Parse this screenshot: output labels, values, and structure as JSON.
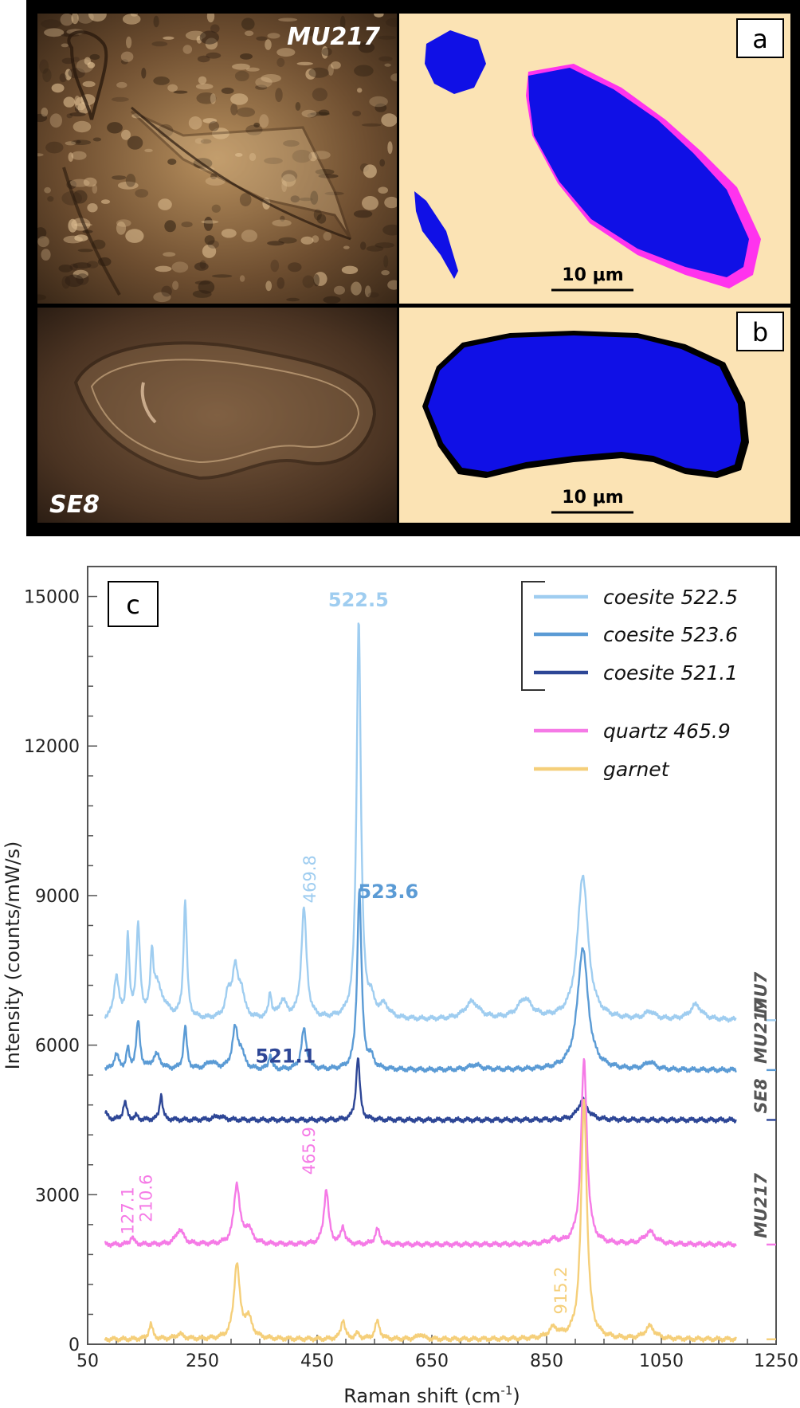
{
  "panel_a": {
    "label": "a",
    "sample": "MU217",
    "scale_bar": "10 μm",
    "colors": {
      "background": "#fbe3b4",
      "coesite": "#1010e6",
      "quartz": "#ff33ee"
    }
  },
  "panel_b": {
    "label": "b",
    "sample": "SE8",
    "scale_bar": "10 μm",
    "colors": {
      "background": "#fbe3b4",
      "coesite": "#1010e6",
      "edge": "#000000"
    }
  },
  "panel_c": {
    "label": "c"
  },
  "chart_data": {
    "type": "line",
    "xlabel": "Raman shift (cm",
    "xlabel_sup": "-1",
    "xlabel_end": ")",
    "ylabel": "Intensity (counts/mW/s)",
    "xlim": [
      50,
      1250
    ],
    "ylim": [
      0,
      15600
    ],
    "x_ticks": [
      50,
      250,
      450,
      650,
      850,
      1050,
      1250
    ],
    "y_ticks": [
      0,
      3000,
      6000,
      9000,
      12000,
      15000
    ],
    "x_range": [
      80,
      1180
    ],
    "legend_position": "top-right",
    "legend": [
      {
        "label": "coesite 522.5",
        "color": "#9fcdf0"
      },
      {
        "label": "coesite 523.6",
        "color": "#5b9bd5"
      },
      {
        "label": "coesite 521.1",
        "color": "#2d4696"
      },
      {
        "label": "quartz 465.9",
        "color": "#f57ae6"
      },
      {
        "label": "garnet",
        "color": "#f5cf7a"
      }
    ],
    "series": [
      {
        "name": "coesite 522.5",
        "sample": "MU7",
        "color": "#9fcdf0",
        "baseline": 6500,
        "peaks": [
          [
            100,
            850,
            5
          ],
          [
            120,
            1600,
            3
          ],
          [
            138,
            1800,
            4
          ],
          [
            162,
            1100,
            3
          ],
          [
            170,
            500,
            8
          ],
          [
            180,
            250,
            15
          ],
          [
            220,
            2350,
            3.5
          ],
          [
            295,
            450,
            6
          ],
          [
            307,
            950,
            6
          ],
          [
            318,
            500,
            6
          ],
          [
            368,
            500,
            3
          ],
          [
            390,
            350,
            8
          ],
          [
            427,
            2200,
            5.5
          ],
          [
            522.5,
            8000,
            4.5
          ],
          [
            544,
            300,
            6
          ],
          [
            567,
            250,
            10
          ],
          [
            720,
            350,
            15
          ],
          [
            812,
            400,
            15
          ],
          [
            913,
            2900,
            11
          ],
          [
            1030,
            150,
            10
          ],
          [
            1110,
            300,
            12
          ]
        ]
      },
      {
        "name": "coesite 523.6",
        "sample": "MU217",
        "color": "#5b9bd5",
        "baseline": 5500,
        "peaks": [
          [
            100,
            300,
            5
          ],
          [
            120,
            400,
            3
          ],
          [
            138,
            950,
            4
          ],
          [
            170,
            300,
            8
          ],
          [
            220,
            850,
            3.5
          ],
          [
            265,
            150,
            10
          ],
          [
            307,
            800,
            6
          ],
          [
            318,
            300,
            6
          ],
          [
            368,
            300,
            3
          ],
          [
            427,
            800,
            5.5
          ],
          [
            523.6,
            3600,
            4.5
          ],
          [
            544,
            200,
            6
          ],
          [
            725,
            100,
            12
          ],
          [
            913,
            2450,
            11
          ],
          [
            1030,
            150,
            10
          ]
        ]
      },
      {
        "name": "coesite 521.1",
        "sample": "SE8",
        "color": "#2d4696",
        "baseline": 4500,
        "peaks": [
          [
            80,
            150,
            5
          ],
          [
            115,
            350,
            4
          ],
          [
            135,
            80,
            3
          ],
          [
            178,
            520,
            3
          ],
          [
            278,
            80,
            10
          ],
          [
            521.1,
            1250,
            4
          ],
          [
            913,
            400,
            10
          ]
        ]
      },
      {
        "name": "quartz 465.9",
        "sample": "MU217",
        "color": "#f57ae6",
        "baseline": 2000,
        "peaks": [
          [
            127.1,
            150,
            4
          ],
          [
            210.6,
            300,
            8
          ],
          [
            310,
            1200,
            6
          ],
          [
            330,
            300,
            8
          ],
          [
            465.9,
            1100,
            5
          ],
          [
            495,
            350,
            4
          ],
          [
            555,
            300,
            5
          ],
          [
            862,
            80,
            10
          ],
          [
            915.2,
            3700,
            6
          ],
          [
            1030,
            250,
            12
          ]
        ]
      },
      {
        "name": "garnet",
        "sample": "",
        "color": "#f5cf7a",
        "baseline": 100,
        "peaks": [
          [
            160,
            300,
            4
          ],
          [
            210,
            100,
            8
          ],
          [
            310,
            1500,
            6
          ],
          [
            330,
            400,
            8
          ],
          [
            495,
            400,
            4
          ],
          [
            520,
            100,
            5
          ],
          [
            555,
            350,
            5
          ],
          [
            630,
            100,
            6
          ],
          [
            862,
            200,
            10
          ],
          [
            915.2,
            4800,
            6
          ],
          [
            1030,
            250,
            10
          ]
        ]
      }
    ],
    "annotations": [
      {
        "text": "522.5",
        "x": 522,
        "y": 14800,
        "color": "#9fcdf0",
        "bold": true,
        "rotate": false
      },
      {
        "text": "469.8",
        "x": 447,
        "y": 8850,
        "color": "#9fcdf0",
        "bold": false,
        "rotate": true
      },
      {
        "text": "523.6",
        "x": 574,
        "y": 8950,
        "color": "#5b9bd5",
        "bold": true,
        "rotate": false
      },
      {
        "text": "521.1",
        "x": 395,
        "y": 5650,
        "color": "#2d4696",
        "bold": true,
        "rotate": false
      },
      {
        "text": "465.9",
        "x": 446,
        "y": 3400,
        "color": "#f57ae6",
        "bold": false,
        "rotate": true
      },
      {
        "text": "127.1",
        "x": 130,
        "y": 2200,
        "color": "#f57ae6",
        "bold": false,
        "rotate": true
      },
      {
        "text": "210.6",
        "x": 162,
        "y": 2450,
        "color": "#f57ae6",
        "bold": false,
        "rotate": true
      },
      {
        "text": "915.2",
        "x": 885,
        "y": 600,
        "color": "#f5cf7a",
        "bold": false,
        "rotate": true
      }
    ],
    "side_labels": [
      {
        "text": "MU7",
        "y": 6500
      },
      {
        "text": "MU217",
        "y": 5500
      },
      {
        "text": "SE8",
        "y": 4500
      },
      {
        "text": "MU217",
        "y": 2000
      }
    ]
  }
}
